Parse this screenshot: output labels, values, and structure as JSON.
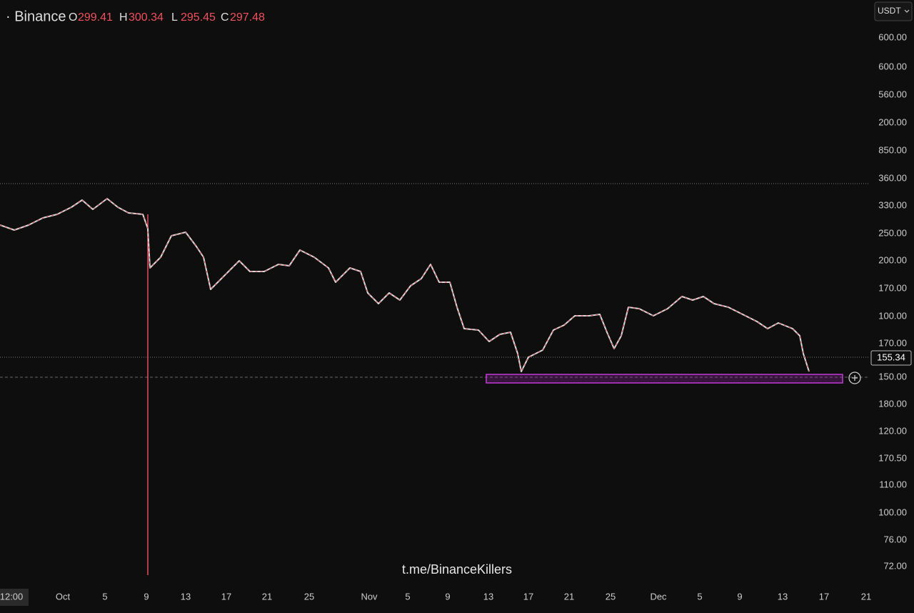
{
  "header": {
    "exchange": "· Binance",
    "ohlc": [
      {
        "key": "O",
        "value": "299.41"
      },
      {
        "key": "H",
        "value": "300.34"
      },
      {
        "key": "L",
        "value": "295.45"
      },
      {
        "key": "C",
        "value": "297.48"
      }
    ]
  },
  "currency_button": "USDT",
  "y_axis_labels": [
    "600.00",
    "600.00",
    "560.00",
    "200.00",
    "850.00",
    "360.00",
    "330.00",
    "250.00",
    "200.00",
    "170.00",
    "100.00",
    "170.00",
    "150.00",
    "180.00",
    "120.00",
    "170.50",
    "110.00",
    "100.00",
    "76.00",
    "72.00"
  ],
  "price_badge": "155.34",
  "x_axis_labels": [
    "12:00",
    "Oct",
    "5",
    "9",
    "13",
    "17",
    "21",
    "25",
    "Nov",
    "5",
    "9",
    "13",
    "17",
    "21",
    "25",
    "Dec",
    "5",
    "9",
    "13",
    "17",
    "21"
  ],
  "watermark": "t.me/BinanceKillers"
}
